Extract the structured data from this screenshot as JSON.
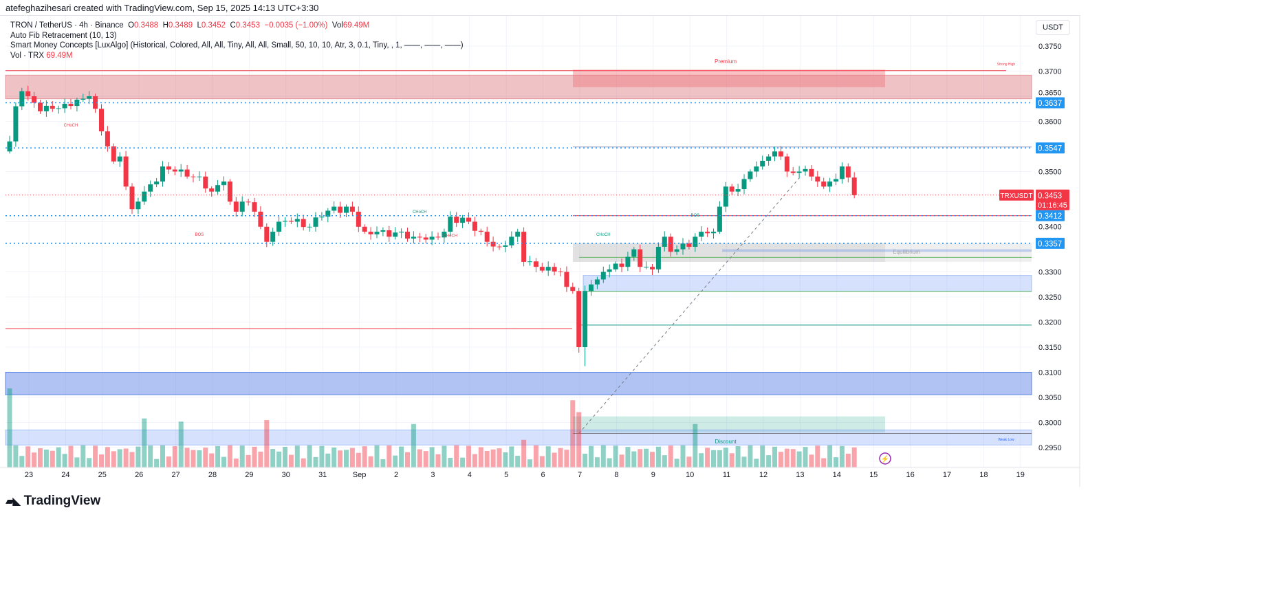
{
  "credit": "atefeghazihesari created with TradingView.com, Sep 15, 2025 14:13 UTC+3:30",
  "legend": {
    "symbol": "TRON / TetherUS · 4h · Binance",
    "o_label": "O",
    "o": "0.3488",
    "h_label": "H",
    "h": "0.3489",
    "l_label": "L",
    "l": "0.3452",
    "c_label": "C",
    "c": "0.3453",
    "change": "−0.0035 (−1.00%)",
    "vol_label": "Vol",
    "vol": "69.49M",
    "fib": "Auto Fib Retracement (10, 13)",
    "smc": "Smart Money Concepts [LuxAlgo] (Historical, Colored, All, All, Tiny, All, All, Small, 50, 10, 10, Atr, 3, 0.1, Tiny, , 1, ——, ——, ——)",
    "vol_indicator_label": "Vol · TRX",
    "vol_indicator_value": "69.49M"
  },
  "currency": "USDT",
  "colors": {
    "up": "#089981",
    "down": "#f23645",
    "tag_blue": "#2196f3"
  },
  "chart_data": {
    "type": "candlestick",
    "ylim": [
      0.2915,
      0.3795
    ],
    "y_ticks": [
      "0.3750",
      "0.3700",
      "0.3650",
      "0.3600",
      "0.3500",
      "0.3400",
      "0.3300",
      "0.3250",
      "0.3200",
      "0.3150",
      "0.3100",
      "0.3050",
      "0.3000",
      "0.2950"
    ],
    "x_ticks": [
      "23",
      "24",
      "25",
      "26",
      "27",
      "28",
      "29",
      "30",
      "31",
      "Sep",
      "2",
      "3",
      "4",
      "5",
      "6",
      "7",
      "8",
      "9",
      "10",
      "11",
      "12",
      "13",
      "14",
      "15",
      "16",
      "17",
      "18",
      "19"
    ],
    "candle_count": 144,
    "close_keypoints": [
      [
        0,
        0.356
      ],
      [
        1,
        0.363
      ],
      [
        2,
        0.366
      ],
      [
        3,
        0.365
      ],
      [
        5,
        0.362
      ],
      [
        7,
        0.3625
      ],
      [
        9,
        0.3635
      ],
      [
        12,
        0.3645
      ],
      [
        13,
        0.365
      ],
      [
        14,
        0.3625
      ],
      [
        15,
        0.358
      ],
      [
        16,
        0.355
      ],
      [
        17,
        0.352
      ],
      [
        18,
        0.353
      ],
      [
        19,
        0.347
      ],
      [
        20,
        0.3425
      ],
      [
        21,
        0.344
      ],
      [
        22,
        0.346
      ],
      [
        24,
        0.348
      ],
      [
        25,
        0.351
      ],
      [
        27,
        0.35
      ],
      [
        29,
        0.349
      ],
      [
        31,
        0.349
      ],
      [
        33,
        0.346
      ],
      [
        35,
        0.348
      ],
      [
        36,
        0.344
      ],
      [
        37,
        0.342
      ],
      [
        38,
        0.344
      ],
      [
        40,
        0.342
      ],
      [
        41,
        0.339
      ],
      [
        42,
        0.336
      ],
      [
        43,
        0.338
      ],
      [
        44,
        0.34
      ],
      [
        46,
        0.34
      ],
      [
        49,
        0.339
      ],
      [
        51,
        0.341
      ],
      [
        53,
        0.343
      ],
      [
        56,
        0.342
      ],
      [
        57,
        0.339
      ],
      [
        58,
        0.338
      ],
      [
        60,
        0.338
      ],
      [
        62,
        0.337
      ],
      [
        64,
        0.338
      ],
      [
        66,
        0.337
      ],
      [
        69,
        0.337
      ],
      [
        71,
        0.338
      ],
      [
        72,
        0.341
      ],
      [
        75,
        0.34
      ],
      [
        77,
        0.338
      ],
      [
        78,
        0.336
      ],
      [
        80,
        0.335
      ],
      [
        82,
        0.337
      ],
      [
        83,
        0.338
      ],
      [
        84,
        0.332
      ],
      [
        86,
        0.331
      ],
      [
        88,
        0.331
      ],
      [
        90,
        0.33
      ],
      [
        91,
        0.327
      ],
      [
        92,
        0.3262
      ],
      [
        93,
        0.315
      ],
      [
        94,
        0.3262
      ],
      [
        95,
        0.3275
      ],
      [
        96,
        0.3285
      ],
      [
        97,
        0.33
      ],
      [
        98,
        0.3305
      ],
      [
        100,
        0.331
      ],
      [
        101,
        0.333
      ],
      [
        102,
        0.3345
      ],
      [
        103,
        0.331
      ],
      [
        104,
        0.331
      ],
      [
        105,
        0.3305
      ],
      [
        106,
        0.335
      ],
      [
        107,
        0.337
      ],
      [
        108,
        0.334
      ],
      [
        109,
        0.3345
      ],
      [
        111,
        0.335
      ],
      [
        112,
        0.337
      ],
      [
        113,
        0.338
      ],
      [
        114,
        0.3377
      ],
      [
        115,
        0.338
      ],
      [
        116,
        0.343
      ],
      [
        117,
        0.347
      ],
      [
        118,
        0.346
      ],
      [
        119,
        0.3465
      ],
      [
        120,
        0.3485
      ],
      [
        121,
        0.35
      ],
      [
        122,
        0.351
      ],
      [
        124,
        0.353
      ],
      [
        125,
        0.354
      ],
      [
        126,
        0.353
      ],
      [
        127,
        0.35
      ],
      [
        128,
        0.3497
      ],
      [
        129,
        0.35
      ],
      [
        130,
        0.3505
      ],
      [
        131,
        0.349
      ],
      [
        132,
        0.348
      ],
      [
        133,
        0.347
      ],
      [
        134,
        0.348
      ],
      [
        135,
        0.3485
      ],
      [
        136,
        0.351
      ],
      [
        137,
        0.3488
      ],
      [
        138,
        0.3453
      ]
    ],
    "volume_spikes": [
      [
        0,
        100
      ],
      [
        22,
        62
      ],
      [
        28,
        58
      ],
      [
        42,
        60
      ],
      [
        66,
        55
      ],
      [
        84,
        35
      ],
      [
        92,
        85
      ],
      [
        93,
        70
      ],
      [
        112,
        55
      ]
    ],
    "levels": {
      "strong_high": 0.3701,
      "premium_zone": [
        0.3645,
        0.3692
      ],
      "premium_recent": [
        0.3668,
        0.3703
      ],
      "tag_levels": [
        "0.3637",
        "0.3547",
        "0.3412",
        "0.3357"
      ],
      "last_price": "0.3453",
      "equilibrium_zone": [
        0.332,
        0.3357
      ],
      "equilibrium_line": 0.3329,
      "ob_zone": [
        0.3261,
        0.3293
      ],
      "green_line": 0.3194,
      "red_line_left": 0.3187,
      "red_line_right": 0.3412,
      "blue_zone": [
        0.3055,
        0.31
      ],
      "discount_zone": [
        0.298,
        0.3012
      ],
      "weak_low_zone": [
        0.2955,
        0.2985
      ],
      "weak_low": 0.2978,
      "fib_line": [
        [
          93,
          0.2978
        ],
        [
          129,
          0.3487
        ]
      ]
    },
    "labels": {
      "premium": "Premium",
      "strong_high": "Strong High",
      "equilibrium": "Equilibrium",
      "discount": "Discount",
      "weak_low": "Weak Low",
      "structure": [
        {
          "text": "CHoCH",
          "type": "bear",
          "t": 10,
          "p": 0.359
        },
        {
          "text": "BOS",
          "type": "bear",
          "t": 31,
          "p": 0.3372
        },
        {
          "text": "CHoCH",
          "type": "bull",
          "t": 67,
          "p": 0.3417
        },
        {
          "text": "CHoCH",
          "type": "bear",
          "t": 72,
          "p": 0.337
        },
        {
          "text": "CHoCH",
          "type": "bull",
          "t": 97,
          "p": 0.3372
        },
        {
          "text": "BOS",
          "type": "bull",
          "t": 112,
          "p": 0.341
        }
      ]
    },
    "price_tag": {
      "symbol": "TRXUSDT",
      "price": "0.3453",
      "countdown": "01:16:45"
    }
  },
  "brand": "TradingView"
}
